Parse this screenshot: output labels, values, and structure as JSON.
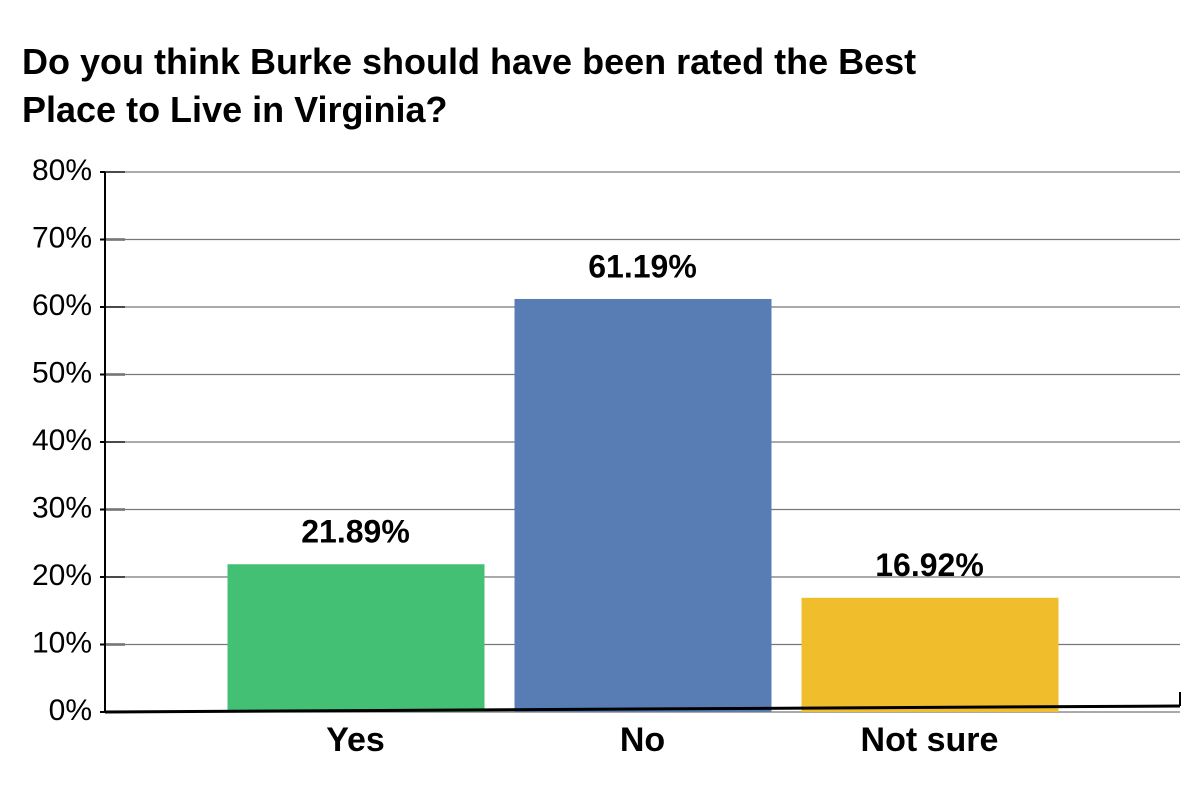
{
  "chart_data": {
    "type": "bar",
    "title": "Do you think Burke should have been rated the Best Place to Live in Virginia?",
    "categories": [
      "Yes",
      "No",
      "Not sure"
    ],
    "values": [
      21.89,
      61.19,
      16.92
    ],
    "value_labels": [
      "21.89%",
      "61.19%",
      "16.92%"
    ],
    "colors": [
      "#43c073",
      "#587db5",
      "#f0bd2c"
    ],
    "ylim": [
      0,
      80
    ],
    "yticks": [
      {
        "value": 0,
        "label": "0%"
      },
      {
        "value": 10,
        "label": "10%"
      },
      {
        "value": 20,
        "label": "20%"
      },
      {
        "value": 30,
        "label": "30%"
      },
      {
        "value": 40,
        "label": "40%"
      },
      {
        "value": 50,
        "label": "50%"
      },
      {
        "value": 60,
        "label": "60%"
      },
      {
        "value": 70,
        "label": "70%"
      },
      {
        "value": 80,
        "label": "80%"
      }
    ],
    "grid": true
  }
}
